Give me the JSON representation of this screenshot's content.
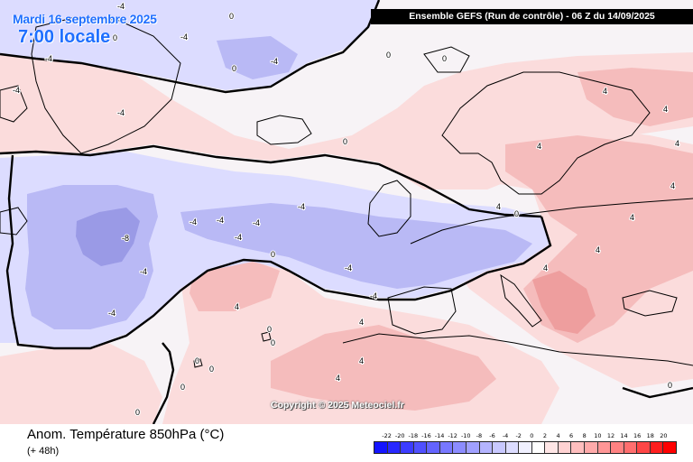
{
  "header": {
    "date": "Mardi 16 septembre 2025",
    "local_time": "7:00 locale",
    "run_info": "Ensemble GEFS  (Run de contrôle)  -  06 Z du 14/09/2025"
  },
  "map": {
    "copyright": "Copyright © 2025 Meteociel.fr",
    "contour_labels": [
      {
        "text": "0"
      },
      {
        "text": "0"
      },
      {
        "text": "0"
      },
      {
        "text": "0"
      },
      {
        "text": "0"
      },
      {
        "text": "0"
      },
      {
        "text": "0"
      },
      {
        "text": "0"
      },
      {
        "text": "0"
      },
      {
        "text": "0"
      },
      {
        "text": "0"
      },
      {
        "text": "0"
      },
      {
        "text": "0"
      },
      {
        "text": "0"
      },
      {
        "text": "0"
      },
      {
        "text": "-4"
      },
      {
        "text": "-4"
      },
      {
        "text": "-4"
      },
      {
        "text": "-4"
      },
      {
        "text": "-4"
      },
      {
        "text": "-4"
      },
      {
        "text": "-4"
      },
      {
        "text": "-4"
      },
      {
        "text": "-4"
      },
      {
        "text": "-4"
      },
      {
        "text": "-4"
      },
      {
        "text": "-4"
      },
      {
        "text": "-4"
      },
      {
        "text": "-4"
      },
      {
        "text": "-4"
      },
      {
        "text": "-8"
      },
      {
        "text": "4"
      },
      {
        "text": "4"
      },
      {
        "text": "4"
      },
      {
        "text": "4"
      },
      {
        "text": "4"
      },
      {
        "text": "4"
      },
      {
        "text": "4"
      },
      {
        "text": "4"
      },
      {
        "text": "4"
      },
      {
        "text": "4"
      },
      {
        "text": "4"
      },
      {
        "text": "4"
      },
      {
        "text": "4"
      }
    ],
    "colors": {
      "cold_light": "#dcdcff",
      "cold_medium": "#b9b9f5",
      "cold_strong": "#9a9ae6",
      "neutral": "#f7f3f6",
      "warm_light": "#fbdcdc",
      "warm_medium": "#f5bcbc",
      "warm_strong": "#ee9e9e",
      "zero_line": "#000000"
    }
  },
  "footer": {
    "parameter": "Anom. Température 850hPa (°C)",
    "lead_time": "(+ 48h)"
  },
  "colorbar": {
    "ticks": [
      "-22",
      "-20",
      "-18",
      "-16",
      "-14",
      "-12",
      "-10",
      "-8",
      "-6",
      "-4",
      "-2",
      "0",
      "2",
      "4",
      "6",
      "8",
      "10",
      "12",
      "14",
      "16",
      "18",
      "20"
    ],
    "colors": [
      "#1414ff",
      "#2828ff",
      "#3c3cff",
      "#5050ff",
      "#6464ff",
      "#7878ff",
      "#8c8cff",
      "#a0a0ff",
      "#b4b4ff",
      "#c8c8ff",
      "#dcdcff",
      "#f0f0ff",
      "#ffffff",
      "#ffe6e6",
      "#ffd2d2",
      "#ffbebe",
      "#ffaaaa",
      "#ff9696",
      "#ff8282",
      "#ff6e6e",
      "#ff4646",
      "#ff1e1e",
      "#ff0000"
    ]
  }
}
